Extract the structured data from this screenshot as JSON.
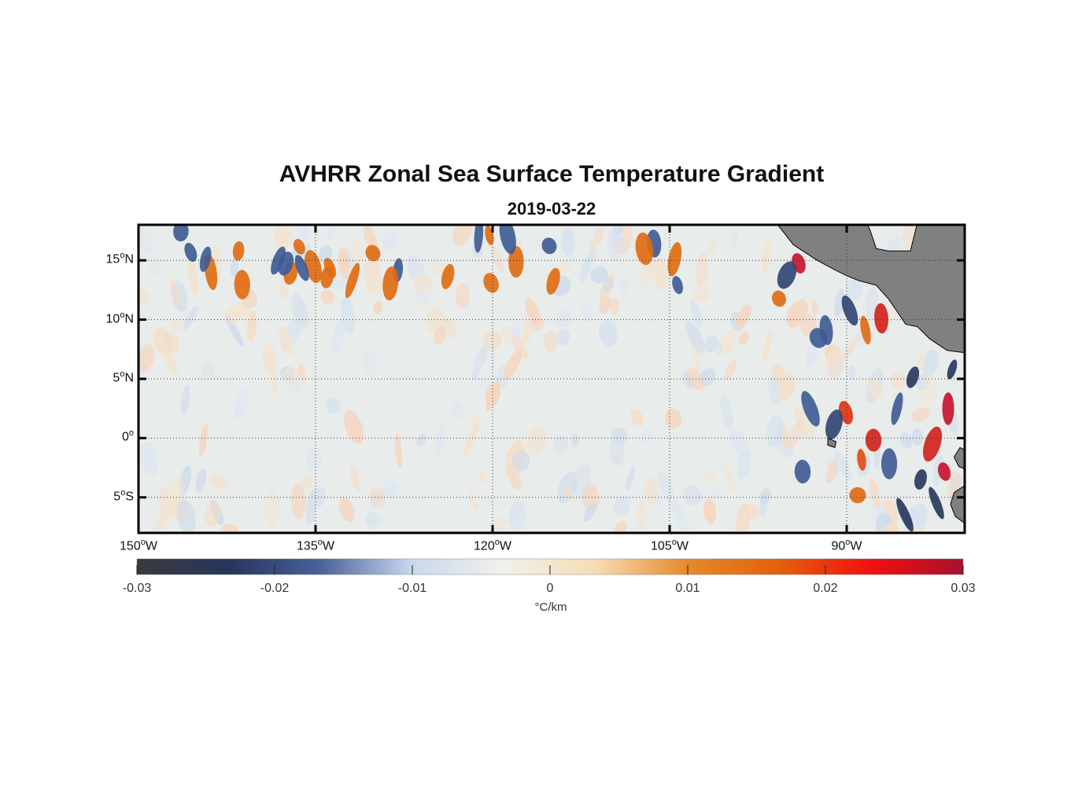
{
  "title": "AVHRR Zonal Sea Surface Temperature Gradient",
  "subtitle": "2019-03-22",
  "map": {
    "lon_range": [
      -150,
      -80
    ],
    "lat_range": [
      -8,
      18
    ],
    "lat_ticks": [
      {
        "value": 15,
        "num": "15",
        "hemi": "N"
      },
      {
        "value": 10,
        "num": "10",
        "hemi": "N"
      },
      {
        "value": 5,
        "num": "5",
        "hemi": "N"
      },
      {
        "value": 0,
        "num": "0",
        "hemi": ""
      },
      {
        "value": -5,
        "num": "5",
        "hemi": "S"
      }
    ],
    "lon_ticks": [
      {
        "value": -150,
        "num": "150",
        "hemi": "W"
      },
      {
        "value": -135,
        "num": "135",
        "hemi": "W"
      },
      {
        "value": -120,
        "num": "120",
        "hemi": "W"
      },
      {
        "value": -105,
        "num": "105",
        "hemi": "W"
      },
      {
        "value": -90,
        "num": "90",
        "hemi": "W"
      }
    ],
    "degree_symbol": "o",
    "grid": true,
    "land_color": "#808080",
    "ocean_base": "#e8ecea"
  },
  "colorbar": {
    "ticks": [
      "-0.03",
      "-0.02",
      "-0.01",
      "0",
      "0.01",
      "0.02",
      "0.03"
    ],
    "unit": "°C/km",
    "range": [
      -0.03,
      0.03
    ],
    "colors": [
      "#3a3a3e",
      "#26365c",
      "#4a6199",
      "#c9d9ee",
      "#f1f0ea",
      "#f7dcb4",
      "#e58a2a",
      "#e4600a",
      "#f01010",
      "#a8102e"
    ]
  }
}
